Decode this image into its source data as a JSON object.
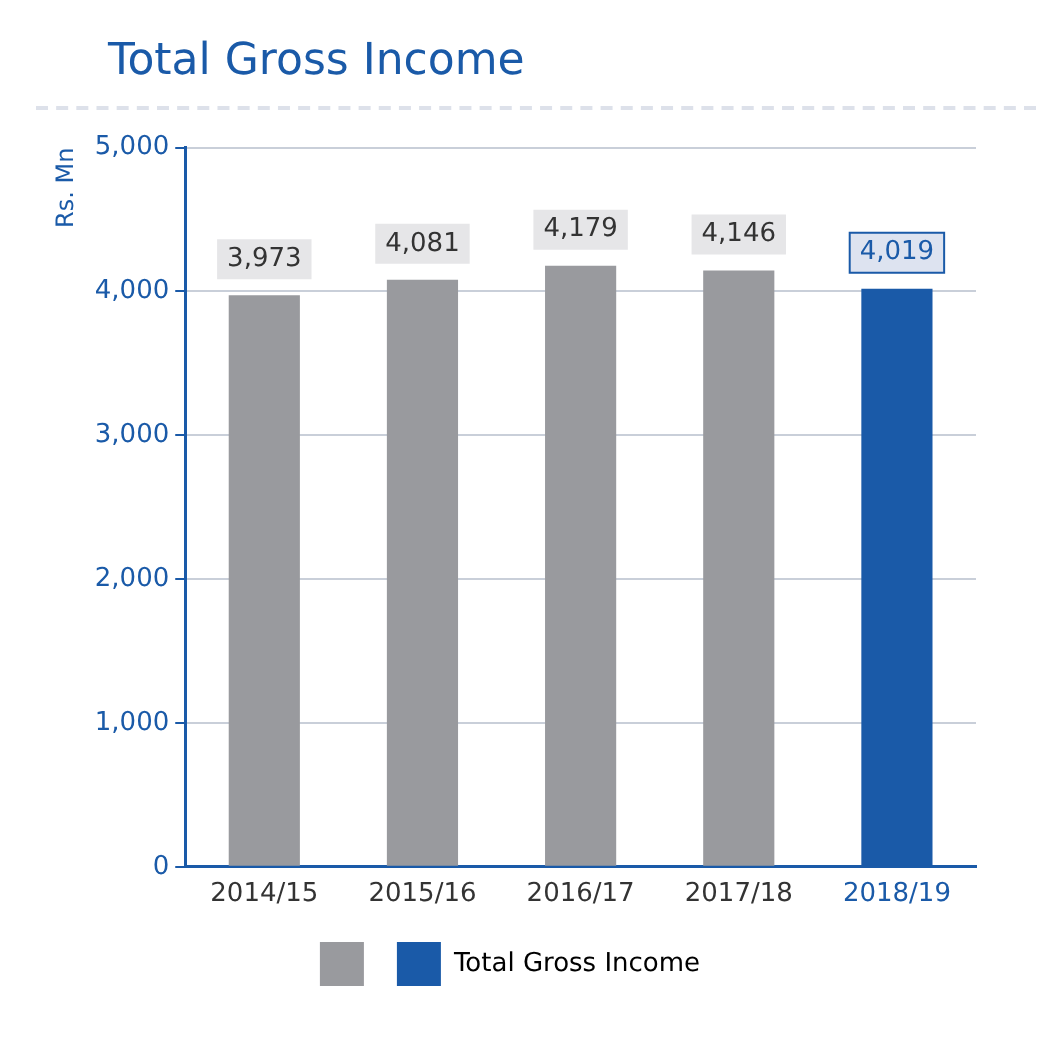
{
  "chart_data": {
    "type": "bar",
    "title": "Total Gross Income",
    "ylabel": "Rs. Mn",
    "categories": [
      "2014/15",
      "2015/16",
      "2016/17",
      "2017/18",
      "2018/19"
    ],
    "series": [
      {
        "name": "Total Gross Income",
        "colors": [
          "#999a9e",
          "#999a9e",
          "#999a9e",
          "#999a9e",
          "#1a5aa8"
        ],
        "values": [
          3973,
          4081,
          4179,
          4146,
          4019
        ],
        "value_labels": [
          "3,973",
          "4,081",
          "4,179",
          "4,146",
          "4,019"
        ]
      }
    ],
    "ylim": [
      0,
      5000
    ],
    "yticks": [
      0,
      {
        "value": 1000,
        "label": "1,000"
      },
      {
        "value": 2000,
        "label": "2,000"
      },
      {
        "value": 3000,
        "label": "3,000"
      },
      {
        "value": 4000,
        "label": "4,000"
      },
      {
        "value": 5000,
        "label": "5,000"
      }
    ],
    "grid": "y",
    "legend": "bottom"
  }
}
